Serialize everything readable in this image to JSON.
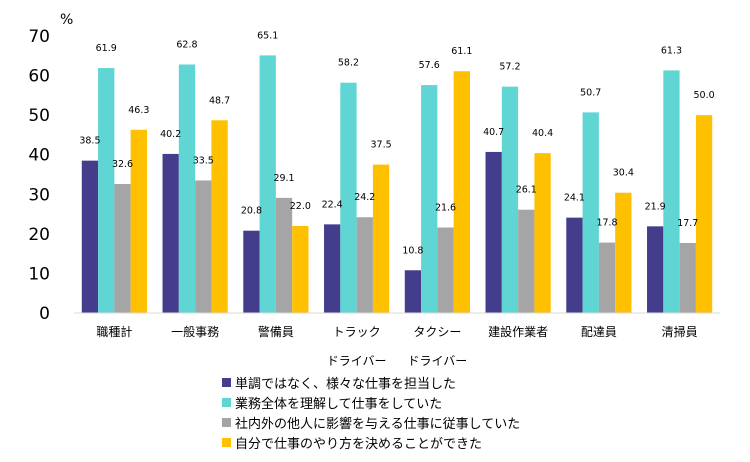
{
  "chart_data": {
    "type": "bar",
    "unit": "%",
    "categories": [
      "職種計",
      "一般事務",
      "警備員",
      "トラック",
      "タクシー",
      "建設作業者",
      "配達員",
      "清掃員"
    ],
    "category_sublabels": [
      "",
      "",
      "",
      "ドライバー",
      "ドライバー",
      "",
      "",
      ""
    ],
    "yticks": [
      "0",
      "10",
      "20",
      "30",
      "40",
      "50",
      "60",
      "70"
    ],
    "ylim": [
      0,
      70
    ],
    "series": [
      {
        "name": "単調ではなく、様々な仕事を担当した",
        "color": "#433d8b",
        "values": [
          38.5,
          40.2,
          20.8,
          22.4,
          10.8,
          40.7,
          24.1,
          21.9
        ],
        "labels": [
          "38.5",
          "40.2",
          "20.8",
          "22.4",
          "10.8",
          "40.7",
          "24.1",
          "21.9"
        ]
      },
      {
        "name": "業務全体を理解して仕事をしていた",
        "color": "#5fd6d4",
        "values": [
          61.9,
          62.8,
          65.1,
          58.2,
          57.6,
          57.2,
          50.7,
          61.3
        ],
        "labels": [
          "61.9",
          "62.8",
          "65.1",
          "58.2",
          "57.6",
          "57.2",
          "50.7",
          "61.3"
        ]
      },
      {
        "name": "社内外の他人に影響を与える仕事に従事していた",
        "color": "#a5a5a5",
        "values": [
          32.6,
          33.5,
          29.1,
          24.2,
          21.6,
          26.1,
          17.8,
          17.7
        ],
        "labels": [
          "32.6",
          "33.5",
          "29.1",
          "24.2",
          "21.6",
          "26.1",
          "17.8",
          "17.7"
        ]
      },
      {
        "name": "自分で仕事のやり方を決めることができた",
        "color": "#ffc000",
        "values": [
          46.3,
          48.7,
          22.0,
          37.5,
          61.1,
          40.4,
          30.4,
          50.0
        ],
        "labels": [
          "46.3",
          "48.7",
          "22.0",
          "37.5",
          "61.1",
          "40.4",
          "30.4",
          "50.0"
        ]
      }
    ],
    "grid": false,
    "legend_position": "bottom"
  }
}
